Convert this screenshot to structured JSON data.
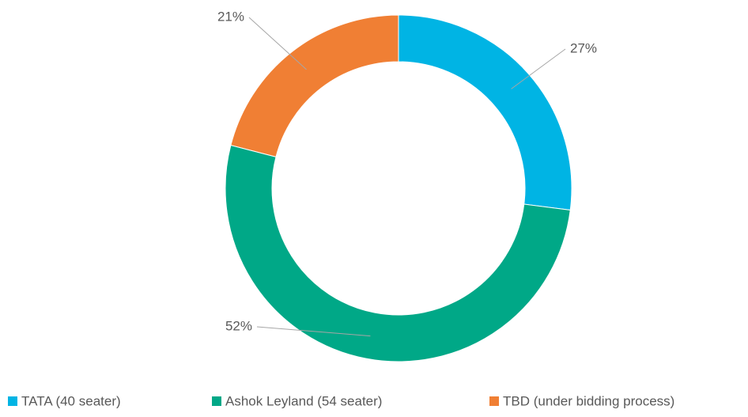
{
  "chart_data": {
    "type": "donut",
    "categories": [
      "TATA (40 seater)",
      "Ashok Leyland (54 seater)",
      "TBD (under bidding process)"
    ],
    "values": [
      27,
      52,
      21
    ],
    "value_labels": [
      "27%",
      "52%",
      "21%"
    ],
    "colors": [
      "#00b4e4",
      "#00a887",
      "#f07f34"
    ],
    "legend": "bottom"
  }
}
